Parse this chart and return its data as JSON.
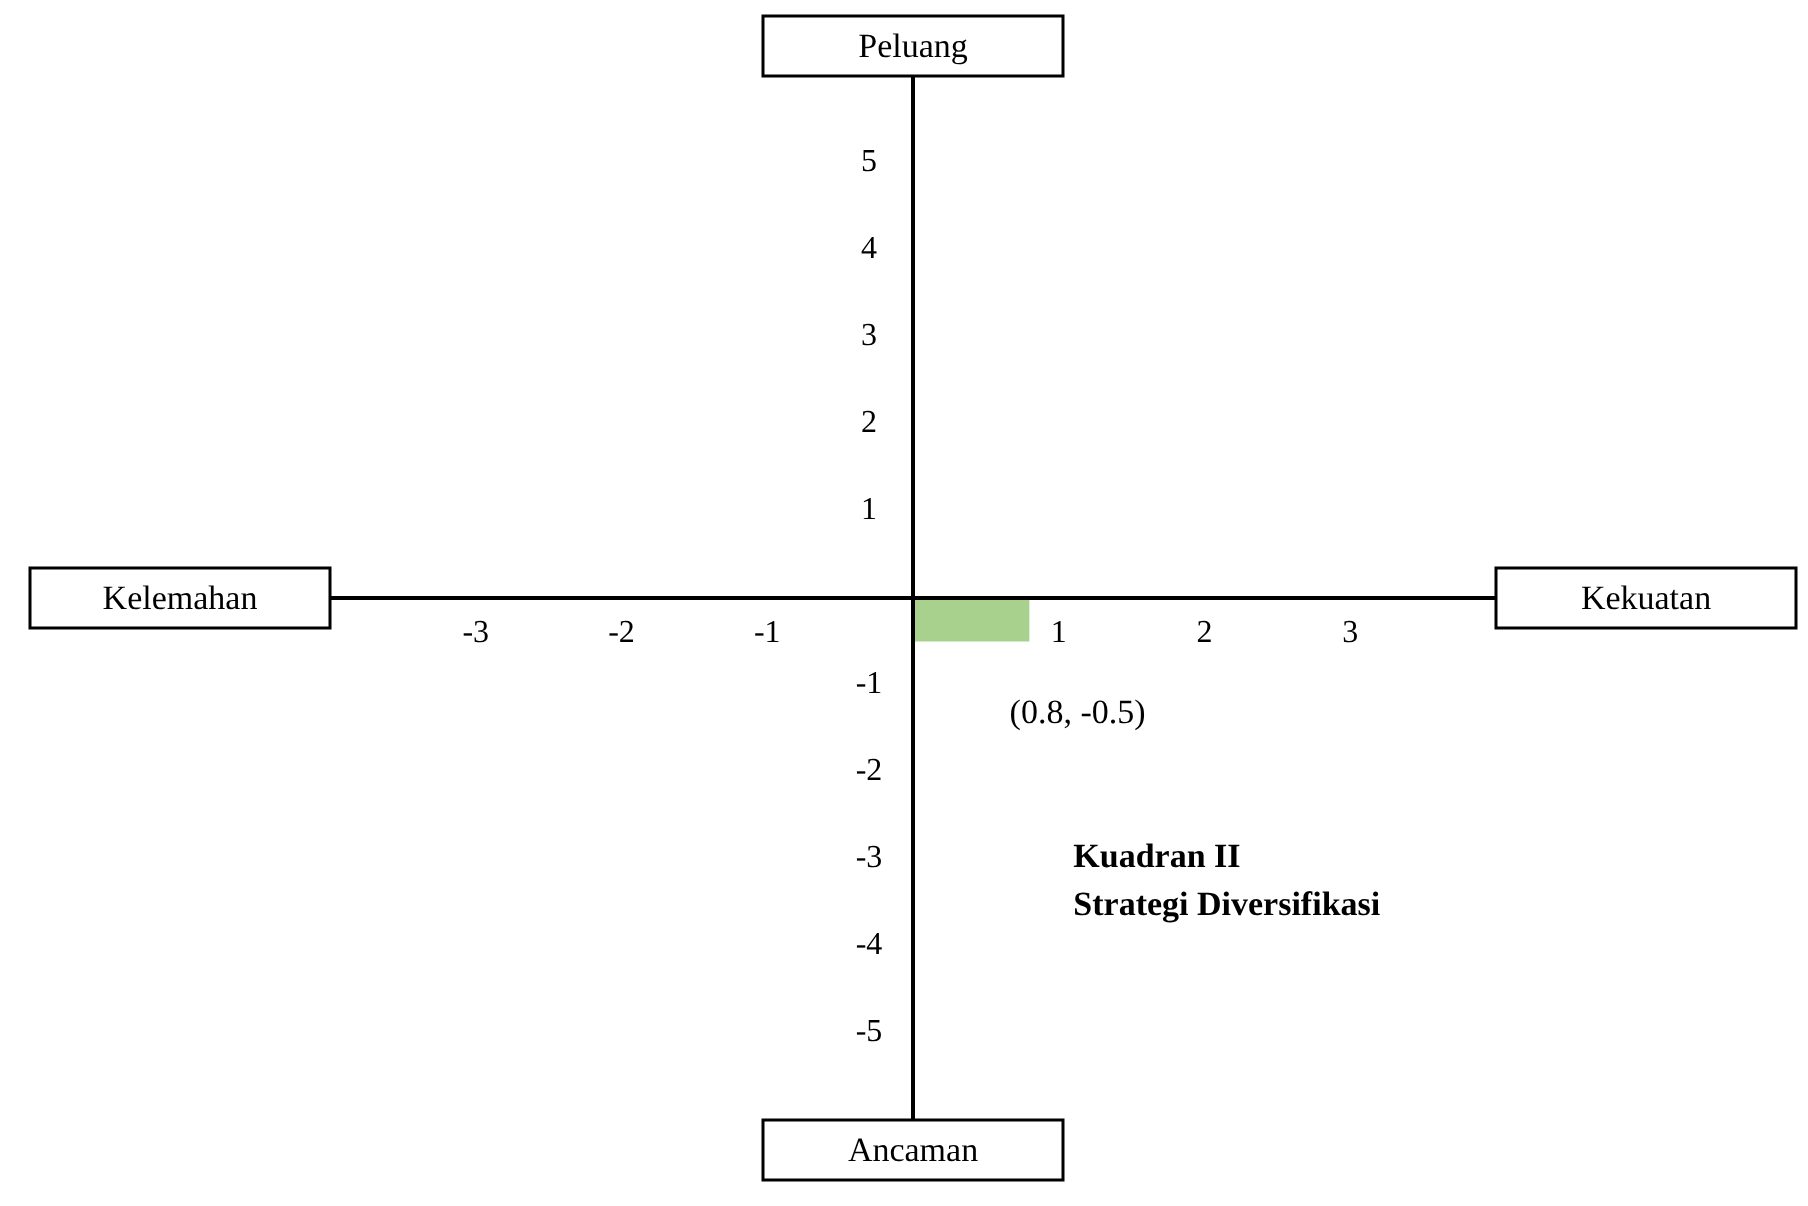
{
  "chart_data": {
    "type": "area",
    "x": [
      0,
      0.8
    ],
    "values": [
      -0.5,
      -0.5
    ],
    "color": "#a9d18e",
    "xlim": [
      -4,
      4
    ],
    "ylim": [
      -6,
      6
    ],
    "xticks": [
      -3,
      -2,
      -1,
      1,
      2,
      3
    ],
    "yticks": [
      -5,
      -4,
      -3,
      -2,
      -1,
      1,
      2,
      3,
      4,
      5
    ],
    "grid": false,
    "legend": false,
    "annotations": [
      "Peluang",
      "Ancaman",
      "Kelemahan",
      "Kekuatan",
      {
        "text": "(0.8, -0.5)",
        "x": 0.8,
        "y": -0.5
      },
      "Kuadran II",
      "Strategi Diversifikasi"
    ]
  }
}
